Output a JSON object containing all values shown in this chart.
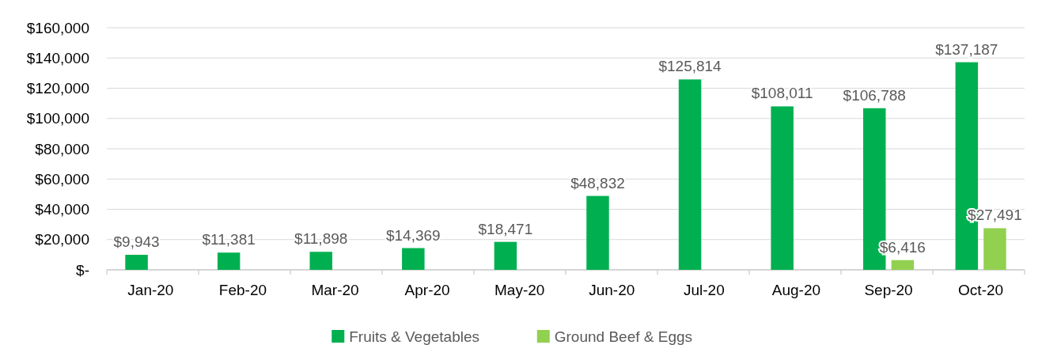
{
  "chart_data": {
    "type": "bar",
    "categories": [
      "Jan-20",
      "Feb-20",
      "Mar-20",
      "Apr-20",
      "May-20",
      "Jun-20",
      "Jul-20",
      "Aug-20",
      "Sep-20",
      "Oct-20"
    ],
    "series": [
      {
        "name": "Fruits & Vegetables",
        "color": "#00b050",
        "values": [
          9943,
          11381,
          11898,
          14369,
          18471,
          48832,
          125814,
          108011,
          106788,
          137187
        ],
        "value_labels": [
          "$9,943",
          "$11,381",
          "$11,898",
          "$14,369",
          "$18,471",
          "$48,832",
          "$125,814",
          "$108,011",
          "$106,788",
          "$137,187"
        ]
      },
      {
        "name": "Ground Beef & Eggs",
        "color": "#92d050",
        "values": [
          null,
          null,
          null,
          null,
          null,
          null,
          null,
          null,
          6416,
          27491
        ],
        "value_labels": [
          null,
          null,
          null,
          null,
          null,
          null,
          null,
          null,
          "$6,416",
          "$27,491"
        ]
      }
    ],
    "ylim": [
      0,
      160000
    ],
    "yticks": [
      {
        "value": 0,
        "label": "$-"
      },
      {
        "value": 20000,
        "label": "$20,000"
      },
      {
        "value": 40000,
        "label": "$40,000"
      },
      {
        "value": 60000,
        "label": "$60,000"
      },
      {
        "value": 80000,
        "label": "$80,000"
      },
      {
        "value": 100000,
        "label": "$100,000"
      },
      {
        "value": 120000,
        "label": "$120,000"
      },
      {
        "value": 140000,
        "label": "$140,000"
      },
      {
        "value": 160000,
        "label": "$160,000"
      }
    ],
    "grid": "y",
    "legend": "bottom"
  }
}
